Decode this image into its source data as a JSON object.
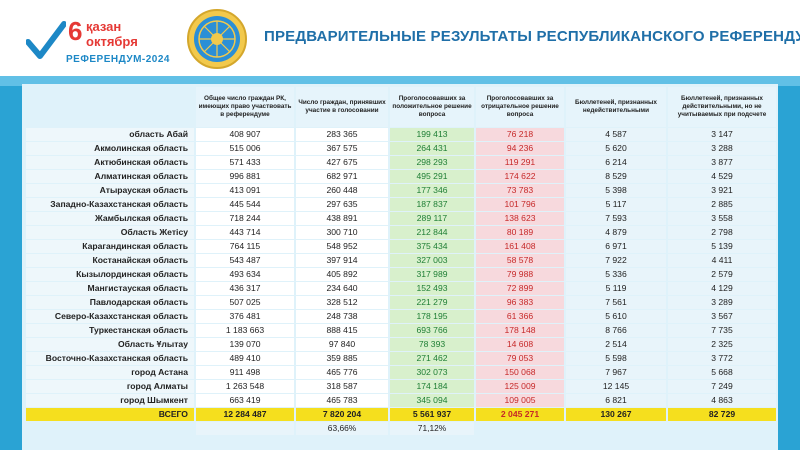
{
  "logo": {
    "day": "6",
    "line1": "қазан",
    "line2": "октября",
    "subtitle": "РЕФЕРЕНДУМ-2024"
  },
  "colors": {
    "header_title": "#1f6fa8",
    "background": "#2aa3d4",
    "positive": "#1e7e34",
    "negative": "#c62828",
    "total_row": "#f5df1e"
  },
  "title": "ПРЕДВАРИТЕЛЬНЫЕ РЕЗУЛЬТАТЫ РЕСПУБЛИКАНСКОГО РЕФЕРЕНДУМА",
  "columns": {
    "eligible": "Общее число граждан РК, имеющих право участвовать в референдуме",
    "participated": "Число граждан, принявших участие в голосовании",
    "yes": "Проголосовавших за положительное решение вопроса",
    "no": "Проголосовавших за отрицательное решение вопроса",
    "invalid": "Бюллетеней, признанных недействительными",
    "excluded": "Бюллетеней, признанных действительными, но не учитываемых при подсчете"
  },
  "rows": [
    {
      "region": "область Абай",
      "eligible": "408 907",
      "participated": "283 365",
      "yes": "199 413",
      "no": "76 218",
      "invalid": "4 587",
      "excluded": "3 147"
    },
    {
      "region": "Акмолинская область",
      "eligible": "515 006",
      "participated": "367 575",
      "yes": "264 431",
      "no": "94 236",
      "invalid": "5 620",
      "excluded": "3 288"
    },
    {
      "region": "Актюбинская область",
      "eligible": "571 433",
      "participated": "427 675",
      "yes": "298 293",
      "no": "119 291",
      "invalid": "6 214",
      "excluded": "3 877"
    },
    {
      "region": "Алматинская область",
      "eligible": "996 881",
      "participated": "682 971",
      "yes": "495 291",
      "no": "174 622",
      "invalid": "8 529",
      "excluded": "4 529"
    },
    {
      "region": "Атырауская область",
      "eligible": "413 091",
      "participated": "260 448",
      "yes": "177 346",
      "no": "73 783",
      "invalid": "5 398",
      "excluded": "3 921"
    },
    {
      "region": "Западно-Казахстанская область",
      "eligible": "445 544",
      "participated": "297 635",
      "yes": "187 837",
      "no": "101 796",
      "invalid": "5 117",
      "excluded": "2 885"
    },
    {
      "region": "Жамбылская область",
      "eligible": "718 244",
      "participated": "438 891",
      "yes": "289 117",
      "no": "138 623",
      "invalid": "7 593",
      "excluded": "3 558"
    },
    {
      "region": "Область Жетісу",
      "eligible": "443 714",
      "participated": "300 710",
      "yes": "212 844",
      "no": "80 189",
      "invalid": "4 879",
      "excluded": "2 798"
    },
    {
      "region": "Карагандинская область",
      "eligible": "764 115",
      "participated": "548 952",
      "yes": "375 434",
      "no": "161 408",
      "invalid": "6 971",
      "excluded": "5 139"
    },
    {
      "region": "Костанайская область",
      "eligible": "543 487",
      "participated": "397 914",
      "yes": "327 003",
      "no": "58 578",
      "invalid": "7 922",
      "excluded": "4 411"
    },
    {
      "region": "Кызылординская область",
      "eligible": "493 634",
      "participated": "405 892",
      "yes": "317 989",
      "no": "79 988",
      "invalid": "5 336",
      "excluded": "2 579"
    },
    {
      "region": "Мангистауская область",
      "eligible": "436 317",
      "participated": "234 640",
      "yes": "152 493",
      "no": "72 899",
      "invalid": "5 119",
      "excluded": "4 129"
    },
    {
      "region": "Павлодарская область",
      "eligible": "507 025",
      "participated": "328 512",
      "yes": "221 279",
      "no": "96 383",
      "invalid": "7 561",
      "excluded": "3 289"
    },
    {
      "region": "Северо-Казахстанская область",
      "eligible": "376 481",
      "participated": "248 738",
      "yes": "178 195",
      "no": "61 366",
      "invalid": "5 610",
      "excluded": "3 567"
    },
    {
      "region": "Туркестанская область",
      "eligible": "1 183 663",
      "participated": "888 415",
      "yes": "693 766",
      "no": "178 148",
      "invalid": "8 766",
      "excluded": "7 735"
    },
    {
      "region": "Область Ұлытау",
      "eligible": "139 070",
      "participated": "97 840",
      "yes": "78 393",
      "no": "14 608",
      "invalid": "2 514",
      "excluded": "2 325"
    },
    {
      "region": "Восточно-Казахстанская область",
      "eligible": "489 410",
      "participated": "359 885",
      "yes": "271 462",
      "no": "79 053",
      "invalid": "5 598",
      "excluded": "3 772"
    },
    {
      "region": "город Астана",
      "eligible": "911 498",
      "participated": "465 776",
      "yes": "302 073",
      "no": "150 068",
      "invalid": "7 967",
      "excluded": "5 668"
    },
    {
      "region": "город Алматы",
      "eligible": "1 263 548",
      "participated": "318 587",
      "yes": "174 184",
      "no": "125 009",
      "invalid": "12 145",
      "excluded": "7 249"
    },
    {
      "region": "город Шымкент",
      "eligible": "663 419",
      "participated": "465 783",
      "yes": "345 094",
      "no": "109 005",
      "invalid": "6 821",
      "excluded": "4 863"
    }
  ],
  "total": {
    "region": "ВСЕГО",
    "eligible": "12 284 487",
    "participated": "7 820 204",
    "yes": "5 561 937",
    "no": "2 045 271",
    "invalid": "130 267",
    "excluded": "82 729"
  },
  "percentages": {
    "participated": "63,66%",
    "yes": "71,12%"
  }
}
